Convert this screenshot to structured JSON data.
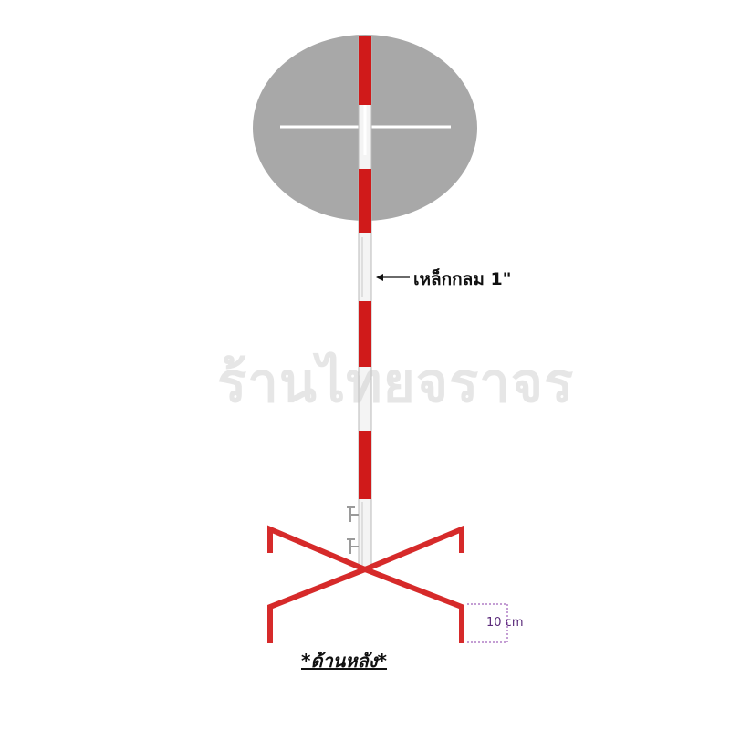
{
  "diagram": {
    "pipe_label": "เหล็กกลม 1\"",
    "height_label": "10 cm",
    "watermark": "ร้านไทยจราจร",
    "caption": "*ด้านหลัง*"
  },
  "colors": {
    "stripe_red": "#d01a1a",
    "stripe_white": "#f4f4f4",
    "pipe_edge": "#b8b8b8",
    "sign_face": "#a8a8a8",
    "base_red": "#d62a2a",
    "dim_line": "#8a3ca8"
  },
  "icons": [
    "arrow-left-icon",
    "bracket-hook-icon"
  ]
}
